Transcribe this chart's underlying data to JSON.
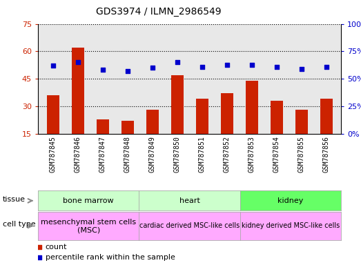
{
  "title": "GDS3974 / ILMN_2986549",
  "samples": [
    "GSM787845",
    "GSM787846",
    "GSM787847",
    "GSM787848",
    "GSM787849",
    "GSM787850",
    "GSM787851",
    "GSM787852",
    "GSM787853",
    "GSM787854",
    "GSM787855",
    "GSM787856"
  ],
  "count_values": [
    36,
    62,
    23,
    22,
    28,
    47,
    34,
    37,
    44,
    33,
    28,
    34
  ],
  "percentile_values": [
    62,
    65,
    58,
    57,
    60,
    65,
    61,
    63,
    63,
    61,
    59,
    61
  ],
  "ylim_left": [
    15,
    75
  ],
  "ylim_right": [
    0,
    100
  ],
  "yticks_left": [
    15,
    30,
    45,
    60,
    75
  ],
  "yticks_right": [
    0,
    25,
    50,
    75,
    100
  ],
  "bar_color": "#cc2200",
  "dot_color": "#0000cc",
  "tissue_groups": [
    {
      "label": "bone marrow",
      "start": 0,
      "end": 3,
      "color": "#ccffcc"
    },
    {
      "label": "heart",
      "start": 4,
      "end": 7,
      "color": "#ccffcc"
    },
    {
      "label": "kidney",
      "start": 8,
      "end": 11,
      "color": "#66ff66"
    }
  ],
  "celltype_groups": [
    {
      "label": "mesenchymal stem cells\n(MSC)",
      "start": 0,
      "end": 3,
      "fontsize": 8
    },
    {
      "label": "cardiac derived MSC-like cells",
      "start": 4,
      "end": 7,
      "fontsize": 7
    },
    {
      "label": "kidney derived MSC-like cells",
      "start": 8,
      "end": 11,
      "fontsize": 7
    }
  ],
  "celltype_color": "#ffaaff",
  "bg_color": "#e8e8e8",
  "plot_bg": "#ffffff"
}
